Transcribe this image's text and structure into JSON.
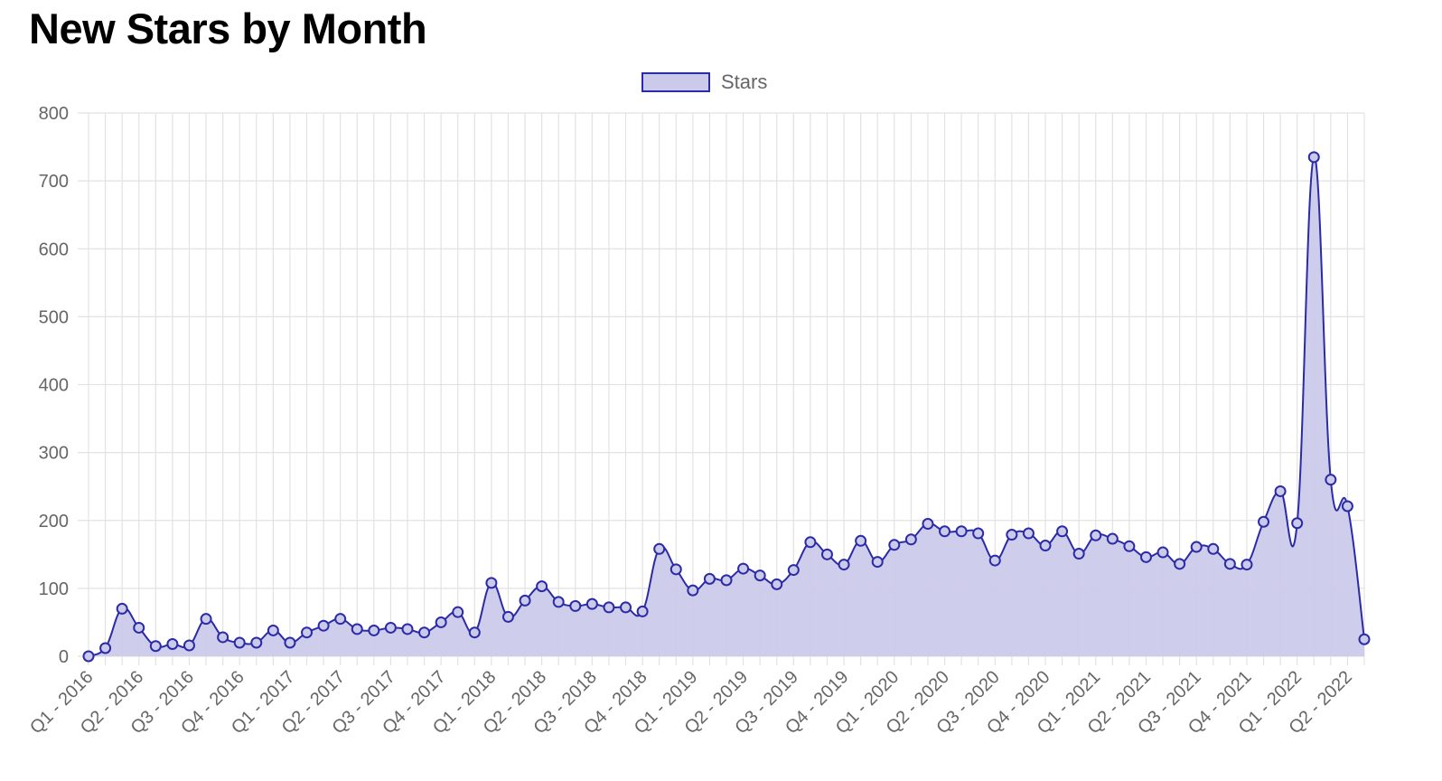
{
  "title": "New Stars by Month",
  "colors": {
    "line": "#2b2ba8",
    "fill": "#cbcaea",
    "grid": "#e2e2e2",
    "tick": "#666666"
  },
  "chart_data": {
    "type": "area",
    "legend": {
      "position": "top",
      "entries": [
        "Stars"
      ]
    },
    "grid": true,
    "ylim": [
      0,
      800
    ],
    "y_ticks": [
      0,
      100,
      200,
      300,
      400,
      500,
      600,
      700,
      800
    ],
    "x_tick_labels": [
      "Q1 - 2016",
      "Q2 - 2016",
      "Q3 - 2016",
      "Q4 - 2016",
      "Q1 - 2017",
      "Q2 - 2017",
      "Q3 - 2017",
      "Q4 - 2017",
      "Q1 - 2018",
      "Q2 - 2018",
      "Q3 - 2018",
      "Q4 - 2018",
      "Q1 - 2019",
      "Q2 - 2019",
      "Q3 - 2019",
      "Q4 - 2019",
      "Q1 - 2020",
      "Q2 - 2020",
      "Q3 - 2020",
      "Q4 - 2020",
      "Q1 - 2021",
      "Q2 - 2021",
      "Q3 - 2021",
      "Q4 - 2021",
      "Q1 - 2022",
      "Q2 - 2022"
    ],
    "series": [
      {
        "name": "Stars",
        "values": [
          0,
          12,
          70,
          42,
          15,
          18,
          16,
          55,
          28,
          20,
          20,
          38,
          20,
          35,
          45,
          55,
          40,
          38,
          42,
          40,
          35,
          50,
          65,
          35,
          108,
          58,
          82,
          103,
          80,
          74,
          77,
          72,
          72,
          66,
          158,
          128,
          97,
          114,
          112,
          129,
          119,
          106,
          127,
          168,
          150,
          135,
          170,
          139,
          164,
          172,
          195,
          184,
          184,
          181,
          141,
          179,
          181,
          163,
          184,
          151,
          178,
          173,
          162,
          146,
          153,
          136,
          161,
          158,
          136,
          135,
          198,
          243,
          196,
          735,
          260,
          221,
          25
        ]
      }
    ]
  }
}
